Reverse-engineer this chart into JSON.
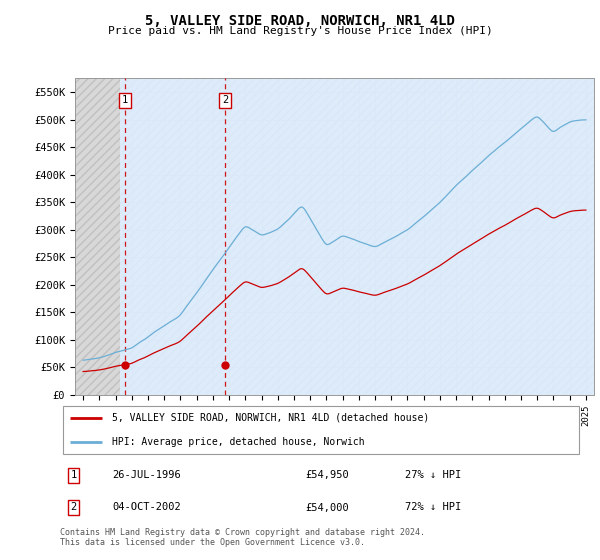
{
  "title": "5, VALLEY SIDE ROAD, NORWICH, NR1 4LD",
  "subtitle": "Price paid vs. HM Land Registry's House Price Index (HPI)",
  "ylim": [
    0,
    575000
  ],
  "yticks": [
    0,
    50000,
    100000,
    150000,
    200000,
    250000,
    300000,
    350000,
    400000,
    450000,
    500000,
    550000
  ],
  "ytick_labels": [
    "£0",
    "£50K",
    "£100K",
    "£150K",
    "£200K",
    "£250K",
    "£300K",
    "£350K",
    "£400K",
    "£450K",
    "£500K",
    "£550K"
  ],
  "hpi_color": "#6baed6",
  "price_color": "#cc0000",
  "purchase1_date": 1996.57,
  "purchase1_price": 54950,
  "purchase2_date": 2002.75,
  "purchase2_price": 54000,
  "legend_line1": "5, VALLEY SIDE ROAD, NORWICH, NR1 4LD (detached house)",
  "legend_line2": "HPI: Average price, detached house, Norwich",
  "annotation1_text": "26-JUL-1996",
  "annotation1_price": "£54,950",
  "annotation1_hpi": "27% ↓ HPI",
  "annotation2_text": "04-OCT-2002",
  "annotation2_price": "£54,000",
  "annotation2_hpi": "72% ↓ HPI",
  "footer": "Contains HM Land Registry data © Crown copyright and database right 2024.\nThis data is licensed under the Open Government Licence v3.0.",
  "grid_color": "#c8c8d8",
  "shaded_color": "#ddeeff",
  "hatch_color": "#d8d8d8",
  "xmin": 1994,
  "xmax": 2025,
  "hatch_end": 1996.3,
  "shade_end": 2003.2
}
